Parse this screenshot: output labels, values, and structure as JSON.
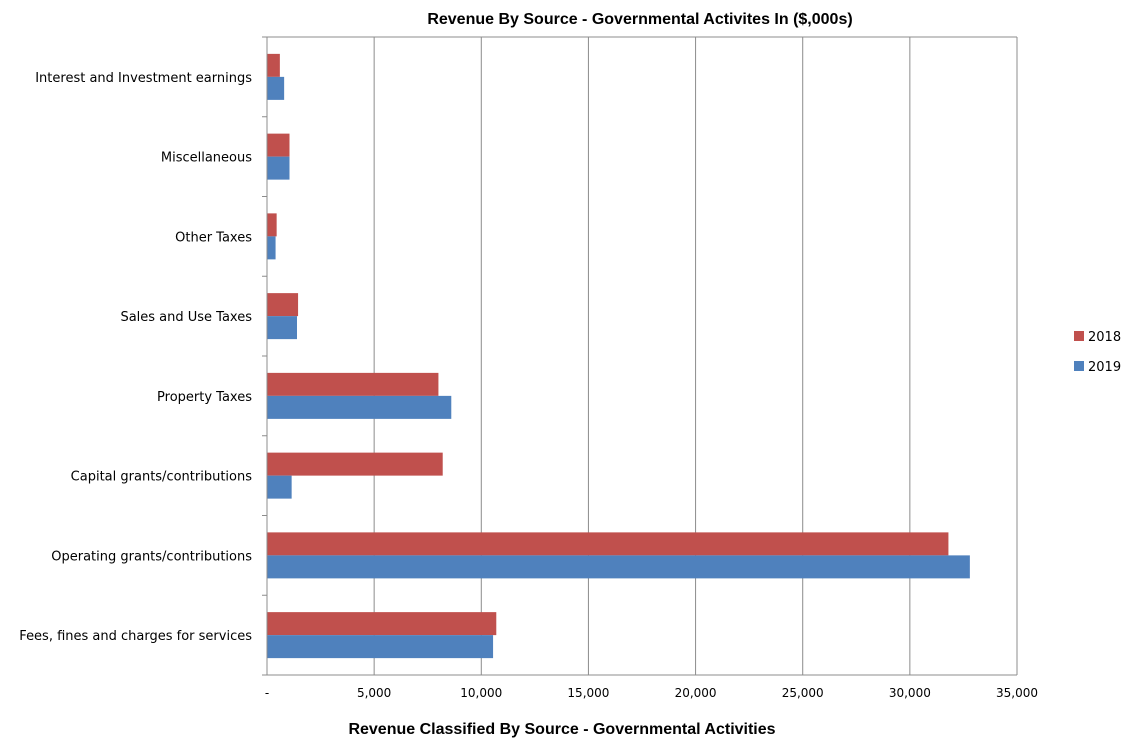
{
  "chart_data": {
    "type": "bar",
    "orientation": "horizontal",
    "title": "Revenue By  Source - Governmental Activites In ($,000s)",
    "xlabel": "Revenue Classified By Source - Governmental Activities",
    "ylabel": "",
    "xlim": [
      0,
      35000
    ],
    "xticks": [
      0,
      5000,
      10000,
      15000,
      20000,
      25000,
      30000,
      35000
    ],
    "xtick_labels": [
      "-",
      "5,000",
      "10,000",
      "15,000",
      "20,000",
      "25,000",
      "30,000",
      "35,000"
    ],
    "grid": "vertical",
    "legend_position": "right",
    "categories": [
      "Interest and Investment earnings",
      "Miscellaneous",
      "Other Taxes",
      "Sales and Use Taxes",
      "Property Taxes",
      "Capital grants/contributions",
      "Operating grants/contributions",
      "Fees, fines and charges for services"
    ],
    "series": [
      {
        "name": "2018",
        "color": "#c0504d",
        "values": [
          600,
          1050,
          450,
          1450,
          8000,
          8200,
          31800,
          10700
        ]
      },
      {
        "name": "2019",
        "color": "#4f81bd",
        "values": [
          800,
          1050,
          400,
          1400,
          8600,
          1150,
          32800,
          10550
        ]
      }
    ]
  }
}
